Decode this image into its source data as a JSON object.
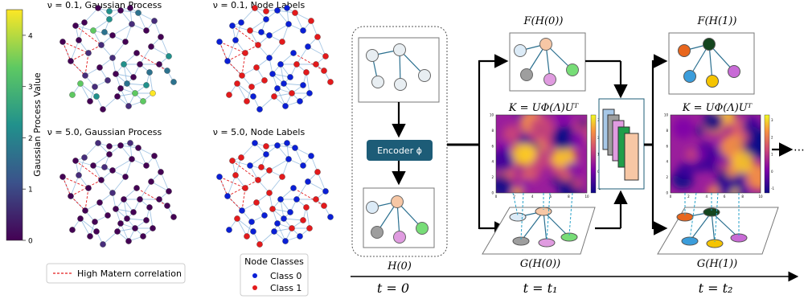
{
  "colorbar": {
    "label": "Gaussian Process Value",
    "ticks": [
      "0",
      "1",
      "2",
      "3",
      "4"
    ],
    "colormap": [
      "#440154",
      "#3b528b",
      "#21918c",
      "#5ec962",
      "#fde725"
    ]
  },
  "panels": {
    "gp_low": "ν = 0.1, Gaussian Process",
    "labels_low": "ν = 0.1, Node Labels",
    "gp_high": "ν = 5.0, Gaussian Process",
    "labels_high": "ν = 5.0, Node Labels"
  },
  "matern_legend": {
    "label": "High Matern correlation",
    "color": "#e31a1c"
  },
  "class_legend": {
    "title": "Node Classes",
    "class0": "Class 0",
    "class1": "Class 1",
    "class0_color": "#0a1fd6",
    "class1_color": "#e31a1c"
  },
  "pipeline": {
    "h0_label": "H(0)",
    "encoder_label": "Encoder ϕ",
    "f_h0": "F(H(0))",
    "f_h1": "F(H(1))",
    "kernel_formula": "K = UΦ(Λ)Uᵀ",
    "g_h0": "G(H(0))",
    "g_h1": "G(H(1))",
    "ellipsis": "⋯",
    "node_colors": {
      "light_blue": "#dcebf7",
      "peach": "#f7c7a5",
      "gray": "#9e9e9e",
      "pink": "#e09be0",
      "green": "#77dd77",
      "orange": "#e8661d",
      "dark_green": "#14451e",
      "blue": "#3b9ddb",
      "yellow": "#f5c400",
      "violet": "#c86ad6"
    },
    "kernel_ticks_x": [
      "0",
      "2",
      "4",
      "6",
      "8",
      "10"
    ],
    "kernel_ticks_y": [
      "10",
      "8",
      "6",
      "4",
      "2",
      "0"
    ],
    "kernel_cbar_ticks": [
      "3",
      "2",
      "1",
      "0",
      "-1"
    ],
    "kernel_cbar_ticks_right": [
      "3",
      "2",
      "1",
      "0",
      "-1"
    ]
  },
  "timeline": {
    "t0": "t = 0",
    "t1": "t = t₁",
    "t2": "t = t₂"
  }
}
